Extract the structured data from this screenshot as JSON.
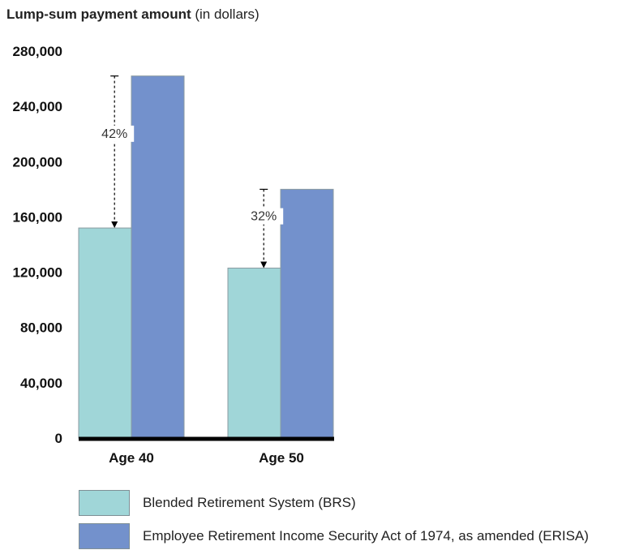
{
  "title": {
    "bold": "Lump-sum payment amount",
    "rest": "(in dollars)"
  },
  "chart_data": {
    "type": "bar",
    "categories": [
      "Age 40",
      "Age 50"
    ],
    "series": [
      {
        "name": "Blended Retirement System (BRS)",
        "values": [
          152000,
          123000
        ],
        "color": "#a0d6d8"
      },
      {
        "name": "Employee Retirement Income Security Act of 1974, as amended (ERISA)",
        "values": [
          262000,
          180000
        ],
        "color": "#7391cc"
      }
    ],
    "yticks": [
      0,
      40000,
      80000,
      120000,
      160000,
      200000,
      240000,
      280000
    ],
    "ytick_labels": [
      "0",
      "40,000",
      "80,000",
      "120,000",
      "160,000",
      "200,000",
      "240,000",
      "280,000"
    ],
    "ylim": [
      0,
      280000
    ],
    "annotations": [
      {
        "category": "Age 40",
        "label": "42%",
        "from": 262000,
        "to": 152000
      },
      {
        "category": "Age 50",
        "label": "32%",
        "from": 180000,
        "to": 123000
      }
    ],
    "grid": false,
    "legend": "bottom"
  }
}
